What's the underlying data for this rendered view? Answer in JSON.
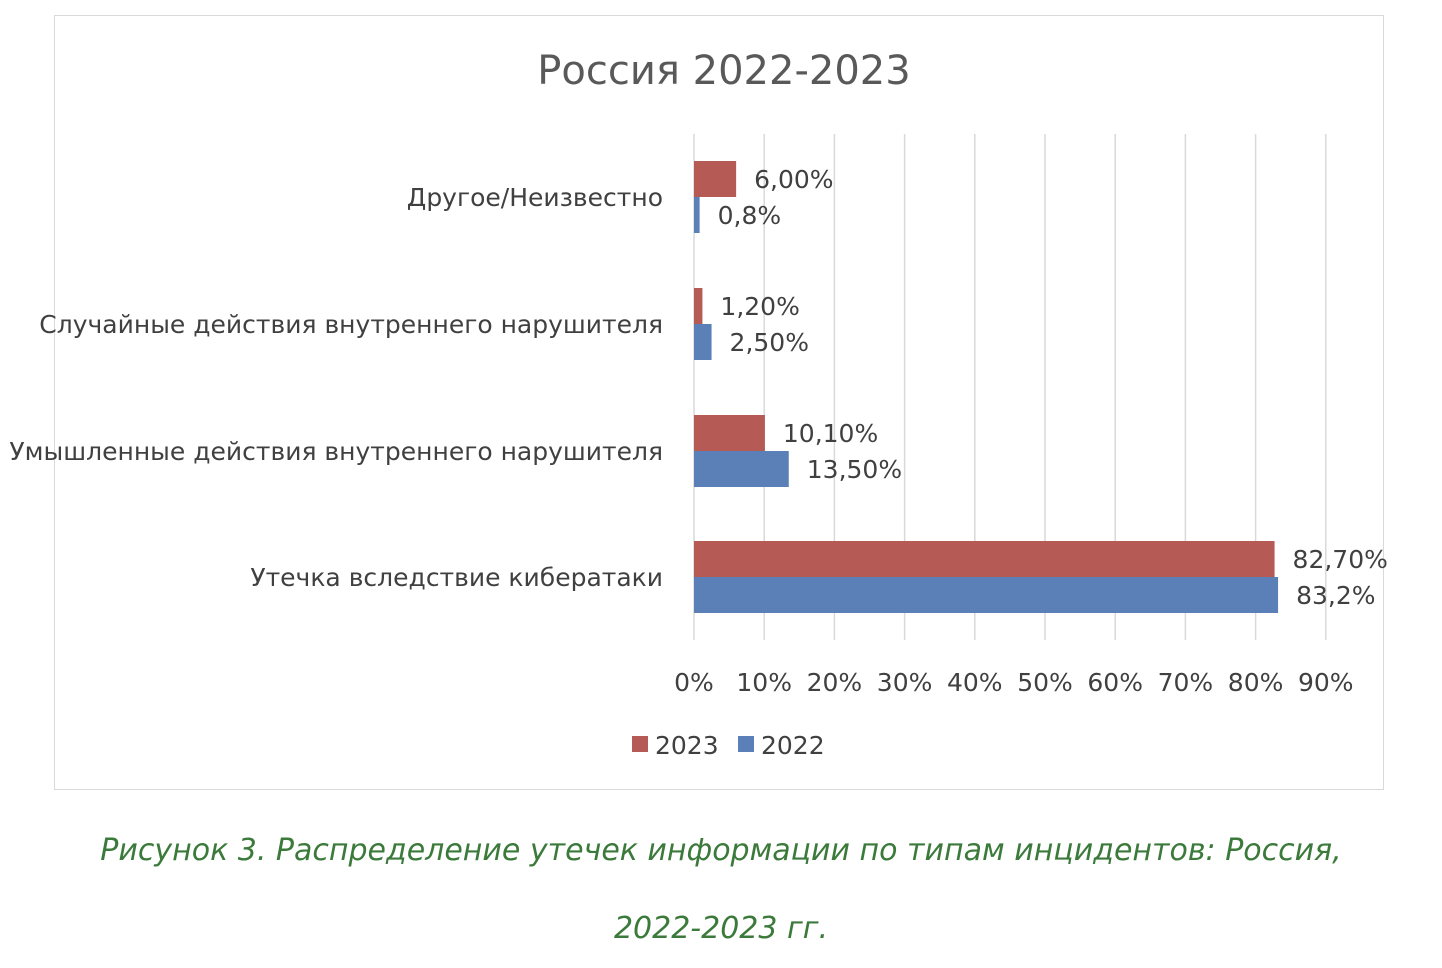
{
  "chart_data": {
    "type": "bar",
    "orientation": "horizontal",
    "title": "Россия 2022-2023",
    "categories": [
      "Другое/Неизвестно",
      "Случайные действия внутреннего нарушителя",
      "Умышленные действия внутреннего нарушителя",
      "Утечка вследствие кибератаки"
    ],
    "series": [
      {
        "name": "2023",
        "color": "#b55a55",
        "values": [
          6.0,
          1.2,
          10.1,
          82.7
        ],
        "labels": [
          "6,00%",
          "1,20%",
          "10,10%",
          "82,70%"
        ]
      },
      {
        "name": "2022",
        "color": "#5b80b8",
        "values": [
          0.8,
          2.5,
          13.5,
          83.2
        ],
        "labels": [
          "0,8%",
          "2,50%",
          "13,50%",
          "83,2%"
        ]
      }
    ],
    "xlim": [
      0,
      90
    ],
    "xticks": [
      "0%",
      "10%",
      "20%",
      "30%",
      "40%",
      "50%",
      "60%",
      "70%",
      "80%",
      "90%"
    ],
    "grid": "vertical",
    "legend": "bottom"
  },
  "caption": {
    "line1": "Рисунок 3.  Распределение утечек информации по типам инцидентов: Россия,",
    "line2": "2022-2023 гг."
  }
}
